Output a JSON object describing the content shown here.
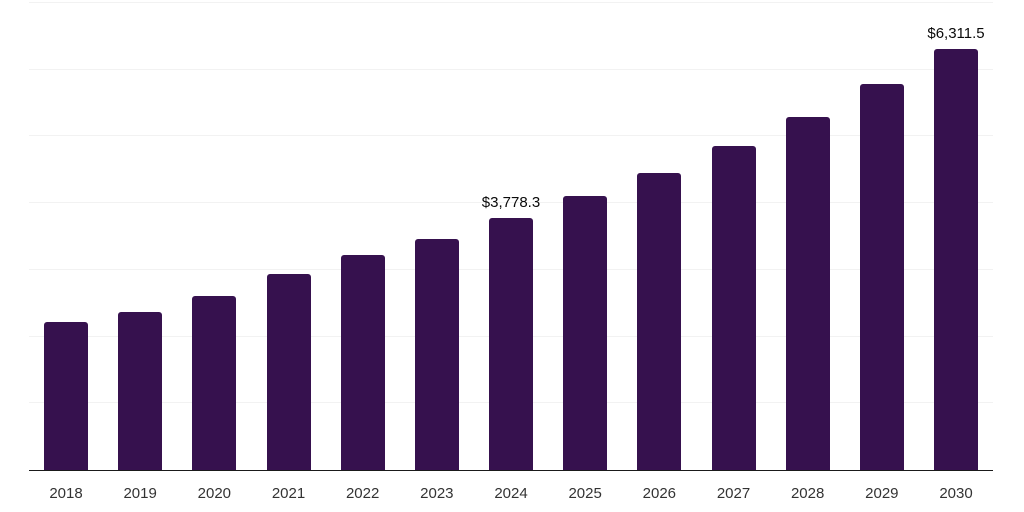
{
  "chart_data": {
    "type": "bar",
    "title": "",
    "xlabel": "",
    "ylabel": "",
    "categories": [
      "2018",
      "2019",
      "2020",
      "2021",
      "2022",
      "2023",
      "2024",
      "2025",
      "2026",
      "2027",
      "2028",
      "2029",
      "2030"
    ],
    "values": [
      2220,
      2370,
      2610,
      2945,
      3230,
      3465,
      3778.3,
      4110,
      4450,
      4860,
      5295,
      5790,
      6311.5
    ],
    "bar_labels": [
      "",
      "",
      "",
      "",
      "",
      "",
      "$3,778.3",
      "",
      "",
      "",
      "",
      "",
      "$6,311.5"
    ],
    "ylim": [
      0,
      7000
    ],
    "grid_step": 1000,
    "grid": "horizontal",
    "legend_position": "none",
    "bar_color": "#36114E",
    "gridline_color": "#F2F2F2",
    "axis_line_color": "#1A1A1A",
    "tick_label_color": "#333333",
    "value_label_color": "#0A0A0A"
  }
}
